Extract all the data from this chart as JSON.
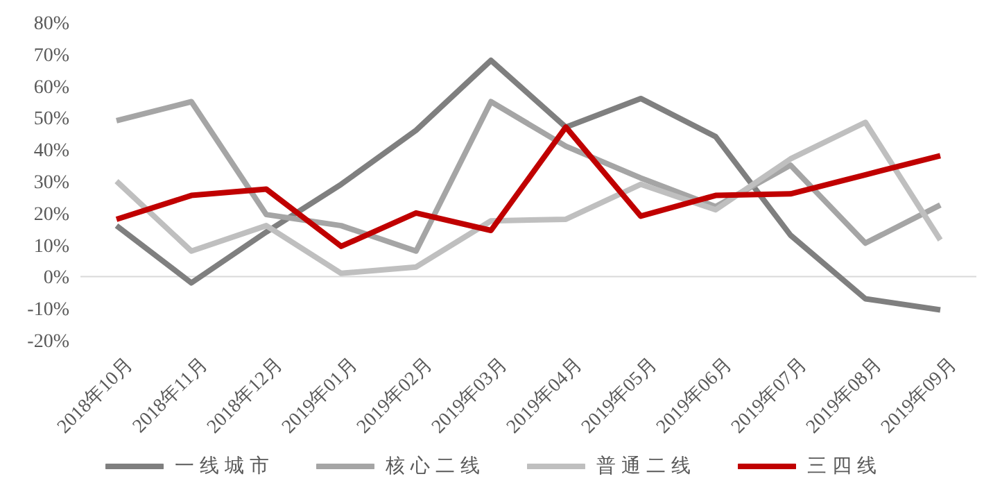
{
  "chart_data": {
    "type": "line",
    "categories": [
      "2018年10月",
      "2018年11月",
      "2018年12月",
      "2019年01月",
      "2019年02月",
      "2019年03月",
      "2019年04月",
      "2019年05月",
      "2019年06月",
      "2019年07月",
      "2019年08月",
      "2019年09月"
    ],
    "series": [
      {
        "name": "一线城市",
        "color": "#7f7f7f",
        "values": [
          16,
          -2,
          14,
          29,
          46,
          68,
          47,
          56,
          44,
          13,
          -7,
          -10.5
        ]
      },
      {
        "name": "核心二线",
        "color": "#a5a5a5",
        "values": [
          49,
          55,
          19.5,
          16,
          8,
          55,
          41,
          31,
          22,
          35,
          10.5,
          22.5
        ]
      },
      {
        "name": "普通二线",
        "color": "#bfbfbf",
        "values": [
          30,
          8,
          16,
          1,
          3,
          17.5,
          18,
          29,
          21,
          37,
          48.5,
          11.5
        ]
      },
      {
        "name": "三四线",
        "color": "#c00000",
        "values": [
          18,
          25.5,
          27.5,
          9.5,
          20,
          14.5,
          47,
          19,
          25.5,
          26,
          32,
          38
        ]
      }
    ],
    "ylim": [
      -20,
      80
    ],
    "yticks": [
      {
        "value": -20,
        "label": "-20%"
      },
      {
        "value": -10,
        "label": "-10%"
      },
      {
        "value": 0,
        "label": "0%"
      },
      {
        "value": 10,
        "label": "10%"
      },
      {
        "value": 20,
        "label": "20%"
      },
      {
        "value": 30,
        "label": "30%"
      },
      {
        "value": 40,
        "label": "40%"
      },
      {
        "value": 50,
        "label": "50%"
      },
      {
        "value": 60,
        "label": "60%"
      },
      {
        "value": 70,
        "label": "70%"
      },
      {
        "value": 80,
        "label": "80%"
      }
    ],
    "ref_lines": [
      {
        "axis": "y",
        "value": 0,
        "color": "#d9d9d9"
      }
    ],
    "grid": false,
    "legend": "bottom",
    "marker": "none",
    "line_style": "solid"
  }
}
